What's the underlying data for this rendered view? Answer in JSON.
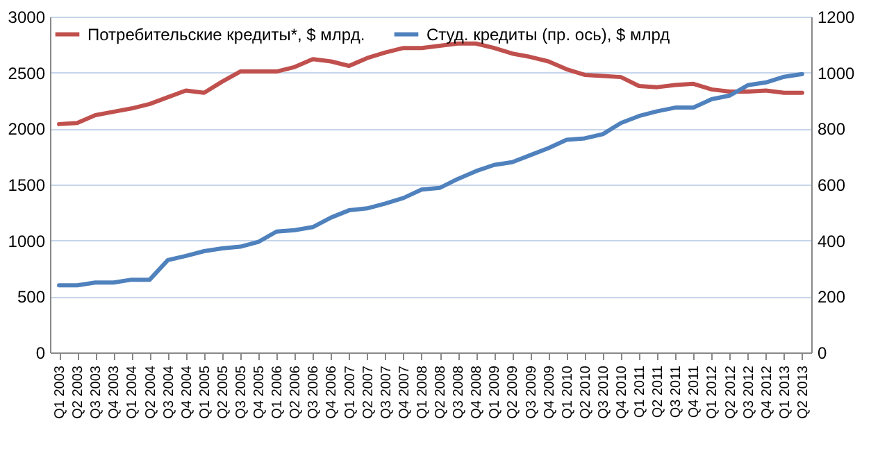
{
  "chart_data": {
    "type": "line",
    "categories": [
      "Q1 2003",
      "Q2 2003",
      "Q3 2003",
      "Q4 2003",
      "Q1 2004",
      "Q2 2004",
      "Q3 2004",
      "Q4 2004",
      "Q1 2005",
      "Q2 2005",
      "Q3 2005",
      "Q4 2005",
      "Q1 2006",
      "Q2 2006",
      "Q3 2006",
      "Q4 2006",
      "Q1 2007",
      "Q2 2007",
      "Q3 2007",
      "Q4 2007",
      "Q1 2008",
      "Q2 2008",
      "Q3 2008",
      "Q4 2008",
      "Q1 2009",
      "Q2 2009",
      "Q3 2009",
      "Q4 2009",
      "Q1 2010",
      "Q2 2010",
      "Q3 2010",
      "Q4 2010",
      "Q1 2011",
      "Q2 2011",
      "Q3 2011",
      "Q4 2011",
      "Q1 2012",
      "Q2 2012",
      "Q3 2012",
      "Q4 2012",
      "Q1 2013",
      "Q2 2013"
    ],
    "series": [
      {
        "name": "Потребительские кредиты*, $ млрд.",
        "color": "#c0504d",
        "values": [
          2040,
          2050,
          2120,
          2150,
          2180,
          2220,
          2280,
          2340,
          2320,
          2420,
          2510,
          2510,
          2510,
          2550,
          2620,
          2600,
          2560,
          2630,
          2680,
          2720,
          2720,
          2740,
          2760,
          2760,
          2720,
          2670,
          2640,
          2600,
          2530,
          2480,
          2470,
          2460,
          2380,
          2370,
          2390,
          2400,
          2350,
          2330,
          2330,
          2340,
          2320,
          2320
        ]
      },
      {
        "name": "Студ. кредиты (пр. ось), $ млрд",
        "color": "#4f81bd",
        "axis": "y2",
        "values": [
          240,
          240,
          250,
          250,
          260,
          260,
          330,
          345,
          362,
          372,
          378,
          395,
          432,
          437,
          448,
          482,
          508,
          515,
          532,
          552,
          582,
          588,
          620,
          648,
          670,
          680,
          705,
          730,
          760,
          765,
          780,
          820,
          845,
          862,
          875,
          875,
          905,
          918,
          955,
          965,
          985,
          995
        ]
      }
    ],
    "ylim": [
      0,
      3000
    ],
    "yticks": [
      0,
      500,
      1000,
      1500,
      2000,
      2500,
      3000
    ],
    "y2lim": [
      0,
      1200
    ],
    "y2ticks": [
      0,
      200,
      400,
      600,
      800,
      1000,
      1200
    ],
    "grid": "y",
    "legend": "top left"
  }
}
